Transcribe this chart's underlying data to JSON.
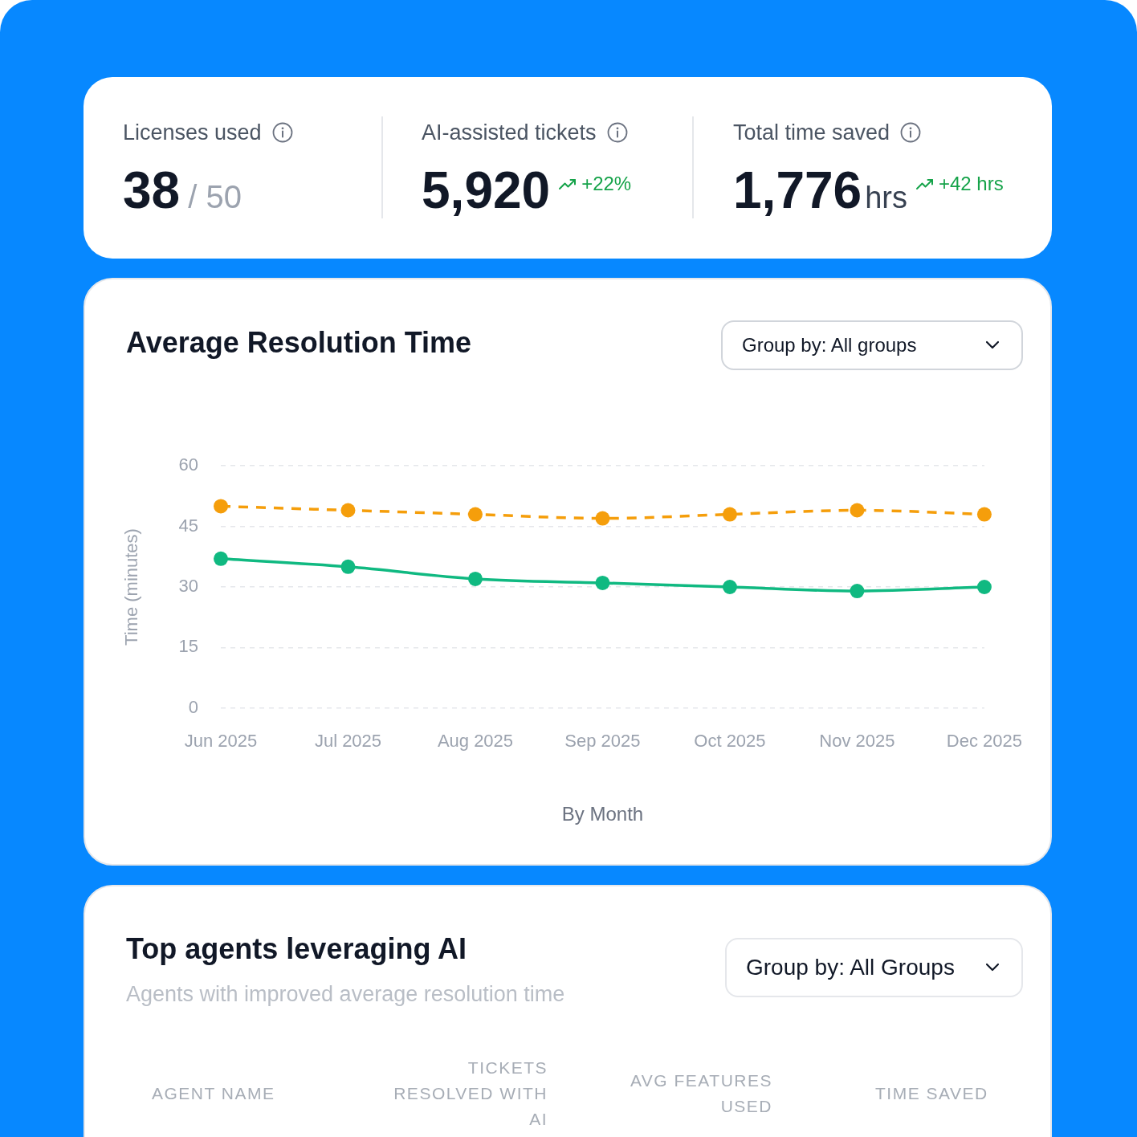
{
  "chart_data": [
    {
      "type": "other",
      "annotations": [
        "Licenses used",
        "38",
        "/ 50",
        "AI-assisted tickets",
        "5,920",
        "+22%",
        "Total time saved",
        "1,776",
        "hrs",
        "+42 hrs"
      ]
    },
    {
      "type": "line",
      "title": "Average Resolution Time",
      "xlabel": "By Month",
      "ylabel": "Time (minutes)",
      "annotations": [
        "Group by: All groups"
      ],
      "categories": [
        "Jun 2025",
        "Jul 2025",
        "Aug 2025",
        "Sep 2025",
        "Oct 2025",
        "Nov 2025",
        "Dec 2025"
      ],
      "series": [
        {
          "color": "#10b981",
          "line_style": "solid",
          "values": [
            37,
            35,
            32,
            31,
            30,
            29,
            30
          ]
        },
        {
          "color": "#f59e0b",
          "line_style": "dashed",
          "values": [
            50,
            49,
            48,
            47,
            48,
            49,
            48
          ]
        }
      ],
      "ylim": [
        0,
        60
      ],
      "yticks": [
        0,
        15,
        30,
        45,
        60
      ],
      "grid": "y",
      "marker": "circle"
    },
    {
      "type": "other",
      "title": "Top agents leveraging AI",
      "subtitle": "Agents with improved average resolution time",
      "annotations": [
        "Group by: All Groups",
        "AGENT NAME",
        "TICKETS RESOLVED WITH AI",
        "AVG FEATURES USED",
        "TIME SAVED"
      ]
    }
  ]
}
